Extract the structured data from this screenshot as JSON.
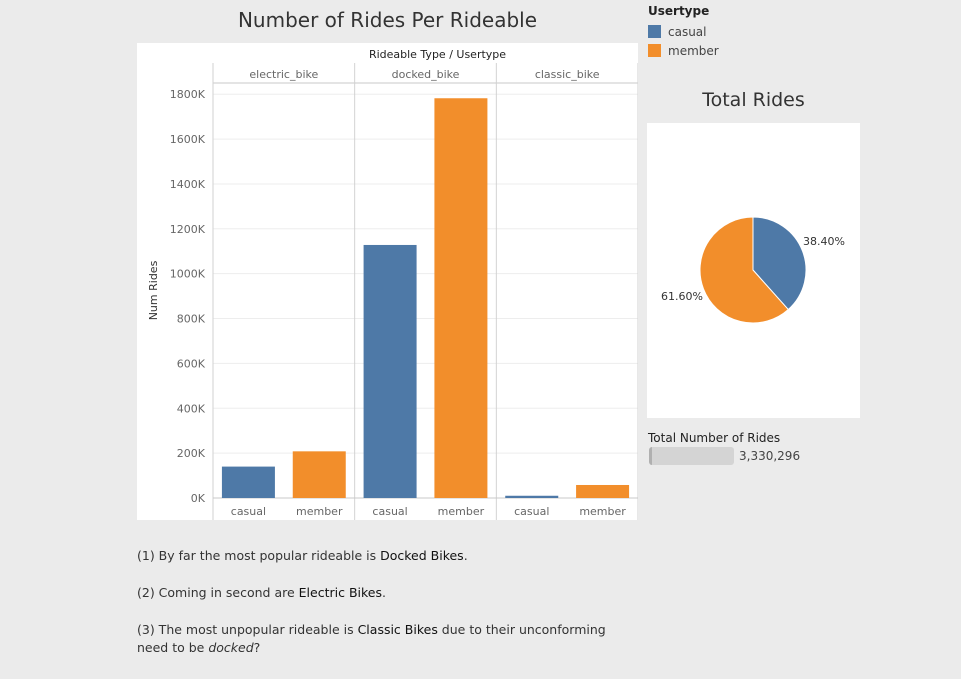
{
  "title": "Number of Rides Per Rideable",
  "legend": {
    "title": "Usertype",
    "items": [
      {
        "label": "casual",
        "color": "#4e79a7"
      },
      {
        "label": "member",
        "color": "#f28e2b"
      }
    ]
  },
  "chart_data": [
    {
      "type": "bar",
      "title": "Number of Rides Per Rideable",
      "header": "Rideable Type / Usertype",
      "ylabel": "Num Rides",
      "ylim": [
        0,
        1850000
      ],
      "yticks": [
        0,
        200000,
        400000,
        600000,
        800000,
        1000000,
        1200000,
        1400000,
        1600000,
        1800000
      ],
      "ytick_labels": [
        "0K",
        "200K",
        "400K",
        "600K",
        "800K",
        "1000K",
        "1200K",
        "1400K",
        "1600K",
        "1800K"
      ],
      "grid": true,
      "groups": [
        {
          "name": "electric_bike",
          "bars": [
            {
              "usertype": "casual",
              "value": 140000
            },
            {
              "usertype": "member",
              "value": 208000
            }
          ]
        },
        {
          "name": "docked_bike",
          "bars": [
            {
              "usertype": "casual",
              "value": 1128000
            },
            {
              "usertype": "member",
              "value": 1782000
            }
          ]
        },
        {
          "name": "classic_bike",
          "bars": [
            {
              "usertype": "casual",
              "value": 10000
            },
            {
              "usertype": "member",
              "value": 58000
            }
          ]
        }
      ]
    },
    {
      "type": "pie",
      "title": "Total Rides",
      "slices": [
        {
          "usertype": "casual",
          "value": 38.4,
          "label": "38.40%",
          "color": "#4e79a7"
        },
        {
          "usertype": "member",
          "value": 61.6,
          "label": "61.60%",
          "color": "#f28e2b"
        }
      ]
    }
  ],
  "total": {
    "label": "Total Number of Rides",
    "value": "3,330,296"
  },
  "notes": [
    {
      "pre": "(1) By far the most popular rideable is ",
      "bold": "Docked Bikes",
      "post": "."
    },
    {
      "pre": "(2) Coming in second are ",
      "bold": "Electric Bikes",
      "post": "."
    },
    {
      "pre": "(3) The most unpopular rideable is  ",
      "bold": "Classic Bikes",
      "post": " due to their unconforming need to be ",
      "em": "docked",
      "tail": "?"
    }
  ]
}
